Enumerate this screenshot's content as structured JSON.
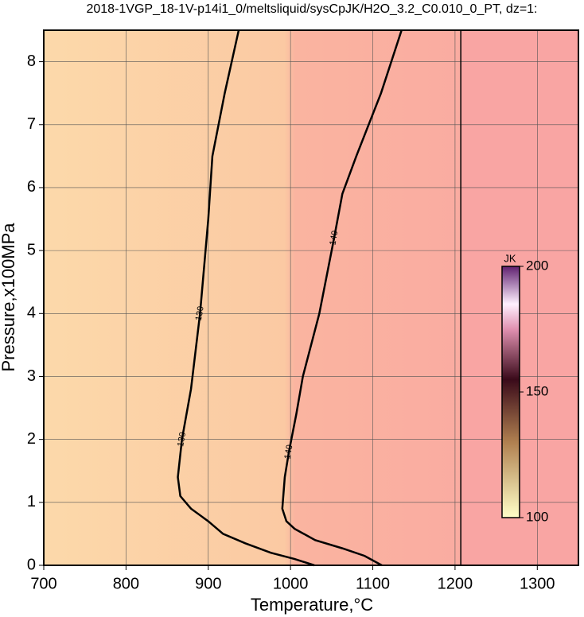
{
  "chart_data": {
    "type": "contour",
    "title": "2018-1VGP_18-1V-p14i1_0/meltsliquid/sysCpJK/H2O_3.2_C0.010_0_PT, dz=1:",
    "x_label": "Temperature,°C",
    "y_label": "Pressure,x100MPa",
    "xlim": [
      700,
      1350
    ],
    "ylim": [
      0,
      8.5
    ],
    "xticks": [
      700,
      800,
      900,
      1000,
      1100,
      1200,
      1300
    ],
    "yticks": [
      0,
      1,
      2,
      3,
      4,
      5,
      6,
      7,
      8
    ],
    "grid": true,
    "boundary_x": 1207,
    "series": [
      {
        "level": 130,
        "color": "#000000",
        "x": [
          937,
          920,
          905,
          900,
          890,
          879,
          868,
          863,
          866,
          879,
          900,
          918,
          945,
          976,
          1005,
          1029
        ],
        "y": [
          8.5,
          7.5,
          6.5,
          5.5,
          4,
          2.8,
          2,
          1.4,
          1.1,
          0.9,
          0.7,
          0.5,
          0.35,
          0.2,
          0.1,
          0
        ]
      },
      {
        "level": 140,
        "color": "#000000",
        "x": [
          1135,
          1110,
          1080,
          1063,
          1053,
          1035,
          1015,
          1007,
          998,
          993,
          990,
          995,
          1005,
          1030,
          1063,
          1090,
          1111
        ],
        "y": [
          8.5,
          7.5,
          6.5,
          5.9,
          5.2,
          4,
          3,
          2.4,
          1.8,
          1.4,
          0.9,
          0.7,
          0.58,
          0.4,
          0.27,
          0.15,
          0
        ]
      }
    ],
    "colorbar": {
      "label": "JK",
      "lim": [
        100,
        200
      ],
      "ticks": [
        100,
        150,
        200
      ]
    }
  }
}
